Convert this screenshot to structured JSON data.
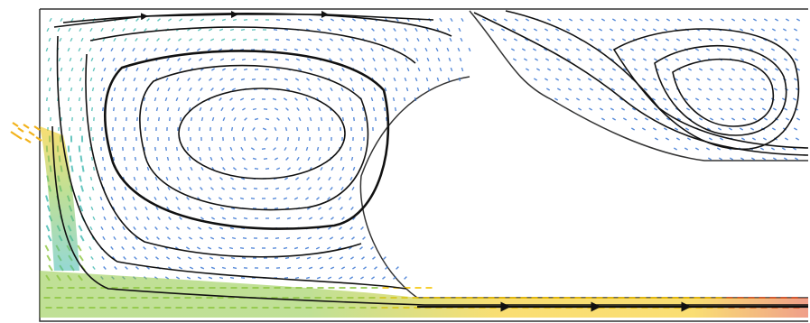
{
  "figure": {
    "kind": "flow-field",
    "colors": {
      "background": "#ffffff",
      "wall": "#333333",
      "streamline": "#111111",
      "low_speed": "#2f6fd0",
      "mid_speed": "#3fb8b0",
      "mid_high_speed": "#8cc63f",
      "high_speed": "#f5c400",
      "peak_speed": "#e3502a",
      "inlet_glyph": "#f2b21a"
    },
    "streamline_styles": [
      "solid",
      "arrowed"
    ]
  }
}
